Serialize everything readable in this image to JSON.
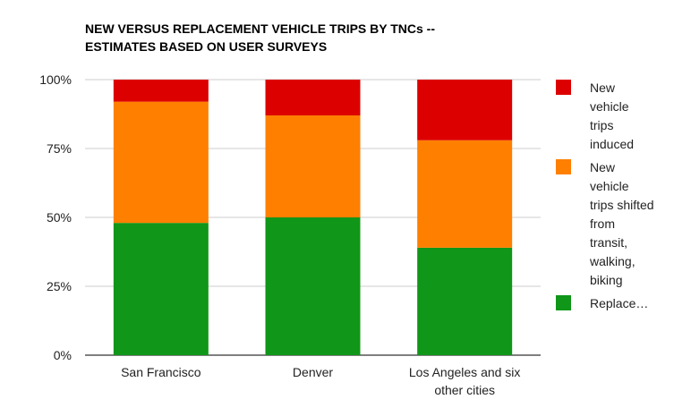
{
  "chart_data": {
    "type": "bar",
    "stacked": true,
    "percent_stacked": true,
    "title_lines": [
      "NEW VERSUS REPLACEMENT VEHICLE TRIPS BY TNCs --",
      "ESTIMATES BASED ON USER SURVEYS"
    ],
    "categories": [
      [
        "San Francisco"
      ],
      [
        "Denver"
      ],
      [
        "Los Angeles and six",
        "other cities"
      ]
    ],
    "y_ticks": [
      "0%",
      "25%",
      "50%",
      "75%",
      "100%"
    ],
    "ylim": [
      0,
      100
    ],
    "grid": true,
    "legend_position": "right",
    "series": [
      {
        "name_lines": [
          "Replace…"
        ],
        "color": "#109618",
        "values": [
          48,
          50,
          39
        ]
      },
      {
        "name_lines": [
          "New",
          "vehicle",
          "trips shifted",
          "from",
          "transit,",
          "walking,",
          "biking"
        ],
        "color": "#ff7f00",
        "values": [
          44,
          37,
          39
        ]
      },
      {
        "name_lines": [
          "New",
          "vehicle",
          "trips",
          "induced"
        ],
        "color": "#dd0000",
        "values": [
          8,
          13,
          22
        ]
      }
    ]
  }
}
